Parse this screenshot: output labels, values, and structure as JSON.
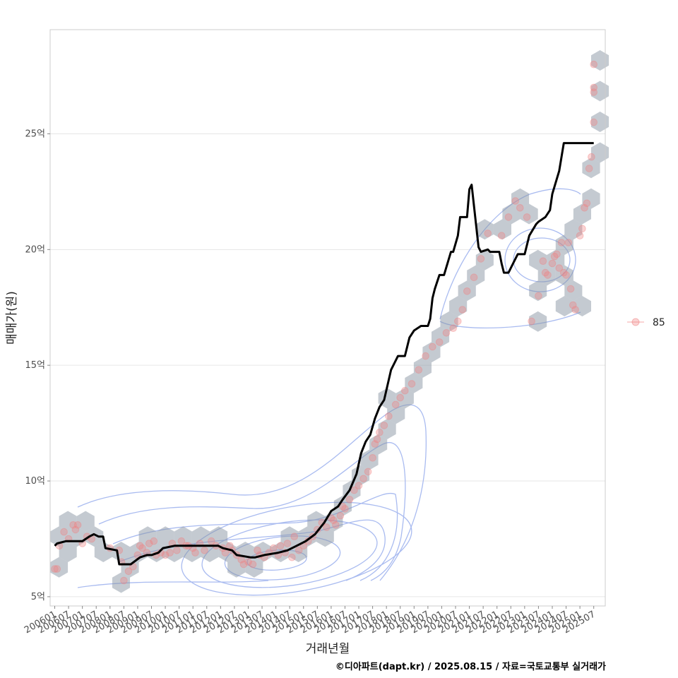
{
  "chart_data": {
    "type": "line",
    "xlabel": "거래년월",
    "ylabel": "매매가(원)",
    "caption": "©디아파트(dapt.kr) / 2025.08.15 / 자료=국토교통부 실거래가",
    "x_ticks": [
      "200601",
      "200607",
      "200701",
      "200707",
      "200801",
      "200807",
      "200901",
      "200907",
      "201001",
      "201007",
      "201101",
      "201107",
      "201201",
      "201207",
      "201301",
      "201307",
      "201401",
      "201407",
      "201501",
      "201507",
      "201601",
      "201607",
      "201701",
      "201707",
      "201801",
      "201807",
      "201901",
      "201907",
      "202001",
      "202007",
      "202101",
      "202107",
      "202201",
      "202207",
      "202301",
      "202307",
      "202401",
      "202407",
      "202501",
      "202507"
    ],
    "y_ticks": [
      {
        "value": 5,
        "label": "5억"
      },
      {
        "value": 10,
        "label": "10억"
      },
      {
        "value": 15,
        "label": "15억"
      },
      {
        "value": 20,
        "label": "20억"
      },
      {
        "value": 25,
        "label": "25억"
      }
    ],
    "xlim": [
      "2005-11",
      "2025-12"
    ],
    "ylim": [
      4.6,
      29.5
    ],
    "grid": true,
    "legend": {
      "position": "right",
      "entries": [
        {
          "label": "85",
          "color": "#f08080"
        }
      ]
    },
    "colors": {
      "line": "#000000",
      "points": "#f08080",
      "hex": "#8a96a3",
      "contour": "#a9bbf0",
      "grid": "#e6e6e6",
      "frame": "#cccccc"
    },
    "series": [
      {
        "type": "line",
        "x": [
          "2006-01",
          "2006-02",
          "2006-06",
          "2007-01",
          "2007-04",
          "2007-06",
          "2007-08",
          "2007-10",
          "2007-11",
          "2008-04",
          "2008-05",
          "2008-10",
          "2009-02",
          "2009-05",
          "2009-07",
          "2009-10",
          "2009-12",
          "2010-05",
          "2010-10",
          "2011-03",
          "2011-09",
          "2011-12",
          "2012-02",
          "2012-06",
          "2012-08",
          "2013-02",
          "2013-04",
          "2013-08",
          "2014-02",
          "2014-06",
          "2014-10",
          "2015-02",
          "2015-06",
          "2015-10",
          "2016-01",
          "2016-04",
          "2016-06",
          "2016-09",
          "2016-12",
          "2017-02",
          "2017-04",
          "2017-06",
          "2017-08",
          "2017-10",
          "2017-12",
          "2018-03",
          "2018-06",
          "2018-09",
          "2018-11",
          "2019-01",
          "2019-04",
          "2019-07",
          "2019-08",
          "2019-09",
          "2019-10",
          "2019-12",
          "2020-01",
          "2020-02",
          "2020-05",
          "2020-06",
          "2020-08",
          "2020-09",
          "2020-12",
          "2021-01",
          "2021-02",
          "2021-05",
          "2021-06",
          "2021-09",
          "2021-10",
          "2022-01",
          "2022-02",
          "2022-03",
          "2022-04",
          "2022-06",
          "2022-08",
          "2022-10",
          "2023-01",
          "2023-03",
          "2023-06",
          "2023-07",
          "2023-10",
          "2023-12",
          "2024-01",
          "2024-04",
          "2024-06",
          "2024-07",
          "2024-09",
          "2024-10",
          "2024-12",
          "2025-01",
          "2025-02",
          "2025-04",
          "2025-07"
        ],
        "values": [
          7.2,
          7.3,
          7.4,
          7.4,
          7.6,
          7.7,
          7.6,
          7.6,
          7.1,
          7.0,
          6.4,
          6.4,
          6.7,
          6.8,
          6.8,
          6.9,
          7.1,
          7.2,
          7.2,
          7.2,
          7.2,
          7.2,
          7.1,
          7.0,
          6.8,
          6.7,
          6.7,
          6.8,
          6.9,
          7.0,
          7.2,
          7.4,
          7.7,
          8.2,
          8.7,
          8.9,
          9.2,
          9.6,
          10.3,
          11.2,
          11.7,
          12.0,
          12.7,
          13.2,
          13.5,
          14.8,
          15.4,
          15.4,
          16.2,
          16.5,
          16.7,
          16.7,
          17.0,
          17.9,
          18.3,
          18.9,
          18.9,
          18.9,
          19.9,
          19.9,
          20.6,
          21.4,
          21.4,
          22.6,
          22.8,
          20.1,
          19.9,
          20.0,
          19.9,
          19.9,
          19.9,
          19.4,
          19.0,
          19.0,
          19.4,
          19.8,
          19.8,
          20.6,
          21.1,
          21.2,
          21.4,
          21.7,
          22.4,
          23.4,
          24.6,
          24.6,
          24.6,
          24.6,
          24.6,
          24.6,
          24.6,
          24.6,
          24.6
        ]
      },
      {
        "type": "scatter",
        "name": "85",
        "x": [
          "2006-01",
          "2006-02",
          "2006-03",
          "2006-05",
          "2006-07",
          "2006-09",
          "2006-10",
          "2006-11",
          "2007-01",
          "2007-03",
          "2007-05",
          "2008-01",
          "2008-05",
          "2008-06",
          "2008-07",
          "2008-09",
          "2008-11",
          "2009-01",
          "2009-02",
          "2009-03",
          "2009-05",
          "2009-06",
          "2009-08",
          "2009-09",
          "2009-11",
          "2010-01",
          "2010-03",
          "2010-04",
          "2010-06",
          "2010-08",
          "2010-10",
          "2010-11",
          "2011-01",
          "2011-02",
          "2011-04",
          "2011-06",
          "2011-09",
          "2011-11",
          "2012-02",
          "2012-03",
          "2012-05",
          "2012-06",
          "2012-08",
          "2012-10",
          "2012-11",
          "2013-01",
          "2013-03",
          "2013-05",
          "2013-06",
          "2013-08",
          "2013-10",
          "2013-12",
          "2014-02",
          "2014-03",
          "2014-05",
          "2014-06",
          "2014-08",
          "2014-09",
          "2014-11",
          "2015-01",
          "2015-03",
          "2015-05",
          "2015-07",
          "2015-09",
          "2015-11",
          "2016-01",
          "2016-02",
          "2016-03",
          "2016-05",
          "2016-06",
          "2016-07",
          "2016-09",
          "2016-11",
          "2017-01",
          "2017-03",
          "2017-05",
          "2017-07",
          "2017-08",
          "2017-09",
          "2017-10",
          "2017-12",
          "2018-02",
          "2018-05",
          "2018-07",
          "2018-09",
          "2018-12",
          "2019-03",
          "2019-06",
          "2019-09",
          "2019-12",
          "2020-03",
          "2020-06",
          "2020-08",
          "2020-10",
          "2020-12",
          "2021-03",
          "2021-06",
          "2021-09",
          "2022-03",
          "2022-06",
          "2022-09",
          "2022-11",
          "2023-02",
          "2023-04",
          "2023-07",
          "2023-09",
          "2023-10",
          "2023-11",
          "2024-01",
          "2024-02",
          "2024-03",
          "2024-04",
          "2024-05",
          "2024-06",
          "2024-07",
          "2024-08",
          "2024-09",
          "2024-10",
          "2024-11",
          "2025-01",
          "2025-02",
          "2025-03",
          "2025-04",
          "2025-05",
          "2025-06",
          "2025-07",
          "2025-07",
          "2025-07",
          "2025-07"
        ],
        "values": [
          6.2,
          6.2,
          7.2,
          7.8,
          7.5,
          8.1,
          7.9,
          8.1,
          7.3,
          7.6,
          7.5,
          7.1,
          7.0,
          6.5,
          5.7,
          6.1,
          6.3,
          6.8,
          7.2,
          7.1,
          6.9,
          7.3,
          7.4,
          6.8,
          6.9,
          6.8,
          6.9,
          7.3,
          7.0,
          7.4,
          7.2,
          7.2,
          7.1,
          6.9,
          7.3,
          7.0,
          7.4,
          7.2,
          7.1,
          6.9,
          7.2,
          7.0,
          6.8,
          6.6,
          6.4,
          6.5,
          6.4,
          7.0,
          6.8,
          6.7,
          6.9,
          7.1,
          6.8,
          7.2,
          6.9,
          7.3,
          6.7,
          7.6,
          7.0,
          7.2,
          7.4,
          7.6,
          7.9,
          8.2,
          8.0,
          8.4,
          8.3,
          8.1,
          8.5,
          8.9,
          8.8,
          9.2,
          9.6,
          9.8,
          10.1,
          10.4,
          11.0,
          11.6,
          11.8,
          12.1,
          12.4,
          12.8,
          13.3,
          13.6,
          13.9,
          14.2,
          14.8,
          15.4,
          15.8,
          16.0,
          16.4,
          16.6,
          16.9,
          17.4,
          18.2,
          18.8,
          19.6,
          20.7,
          20.6,
          21.4,
          22.1,
          21.8,
          21.4,
          16.9,
          18.0,
          19.5,
          19.0,
          18.9,
          19.4,
          19.7,
          19.8,
          19.2,
          20.3,
          19.0,
          18.9,
          20.3,
          18.3,
          17.6,
          17.4,
          20.6,
          20.9,
          21.8,
          22.0,
          23.5,
          24.0,
          25.5,
          26.8,
          27.0,
          28.0
        ]
      }
    ]
  }
}
